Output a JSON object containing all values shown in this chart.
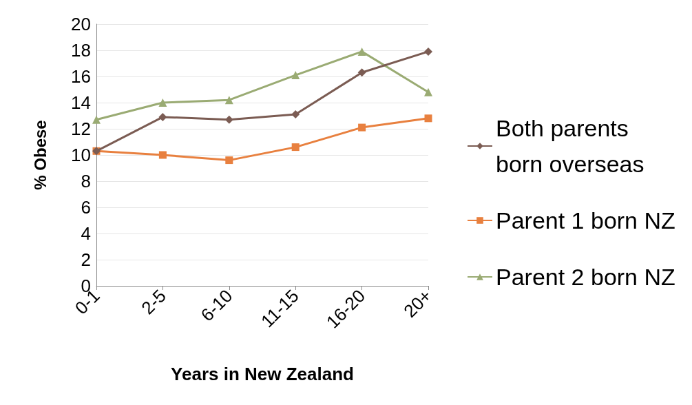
{
  "chart_data": {
    "type": "line",
    "xlabel": "Years in New Zealand",
    "ylabel": "% Obese",
    "categories": [
      "0-1",
      "2-5",
      "6-10",
      "11-15",
      "16-20",
      "20+"
    ],
    "series": [
      {
        "name": "Both parents born overseas",
        "color": "#7b5c53",
        "marker": "diamond",
        "values": [
          10.3,
          12.9,
          12.7,
          13.1,
          16.3,
          17.9
        ]
      },
      {
        "name": "Parent 1 born NZ",
        "color": "#e8803f",
        "marker": "square",
        "values": [
          10.3,
          10.0,
          9.6,
          10.6,
          12.1,
          12.8
        ]
      },
      {
        "name": "Parent 2 born NZ",
        "color": "#9aab73",
        "marker": "triangle",
        "values": [
          12.7,
          14.0,
          14.2,
          16.1,
          17.9,
          14.8
        ]
      }
    ],
    "ylim": [
      0,
      20
    ],
    "yticks": [
      0,
      2,
      4,
      6,
      8,
      10,
      12,
      14,
      16,
      18,
      20
    ],
    "grid": "y",
    "legend": "right"
  }
}
